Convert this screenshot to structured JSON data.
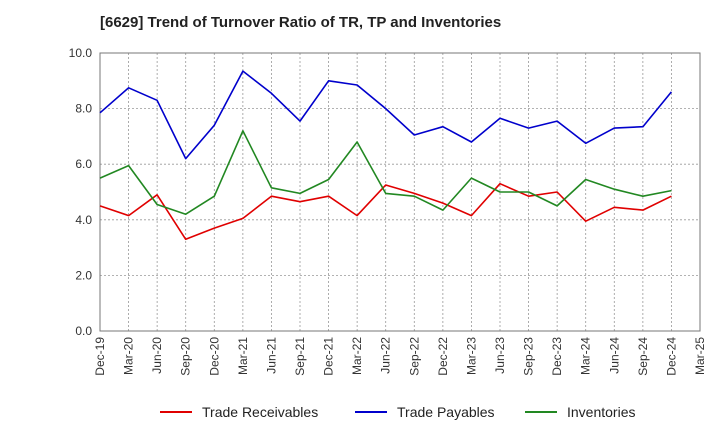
{
  "chart_data": {
    "type": "line",
    "title": "[6629]  Trend of Turnover Ratio of TR, TP and Inventories",
    "xlabel": "",
    "ylabel": "",
    "ylim": [
      0,
      10
    ],
    "yticks": [
      "0.0",
      "2.0",
      "4.0",
      "6.0",
      "8.0",
      "10.0"
    ],
    "ytick_values": [
      0,
      2,
      4,
      6,
      8,
      10
    ],
    "grid": true,
    "legend_position": "bottom",
    "x": [
      "Dec-19",
      "Mar-20",
      "Jun-20",
      "Sep-20",
      "Dec-20",
      "Mar-21",
      "Jun-21",
      "Sep-21",
      "Dec-21",
      "Mar-22",
      "Jun-22",
      "Sep-22",
      "Dec-22",
      "Mar-23",
      "Jun-23",
      "Sep-23",
      "Dec-23",
      "Mar-24",
      "Jun-24",
      "Sep-24",
      "Dec-24",
      "Mar-25"
    ],
    "series": [
      {
        "name": "Trade Receivables",
        "color": "#e00000",
        "values": [
          4.5,
          4.15,
          4.9,
          3.3,
          3.7,
          4.05,
          4.85,
          4.65,
          4.85,
          4.15,
          5.25,
          4.95,
          4.6,
          4.15,
          5.3,
          4.85,
          5.0,
          3.95,
          4.45,
          4.35,
          4.85,
          null
        ]
      },
      {
        "name": "Trade Payables",
        "color": "#0000cc",
        "values": [
          7.85,
          8.75,
          8.3,
          6.2,
          7.4,
          9.35,
          8.55,
          7.55,
          9.0,
          8.85,
          8.0,
          7.05,
          7.35,
          6.8,
          7.65,
          7.3,
          7.55,
          6.75,
          7.3,
          7.35,
          8.6,
          null
        ]
      },
      {
        "name": "Inventories",
        "color": "#228822",
        "values": [
          5.5,
          5.95,
          4.55,
          4.2,
          4.85,
          7.2,
          5.15,
          4.95,
          5.45,
          6.8,
          4.95,
          4.85,
          4.35,
          5.5,
          5.0,
          5.0,
          4.5,
          5.45,
          5.1,
          4.85,
          5.05,
          null
        ]
      }
    ]
  }
}
